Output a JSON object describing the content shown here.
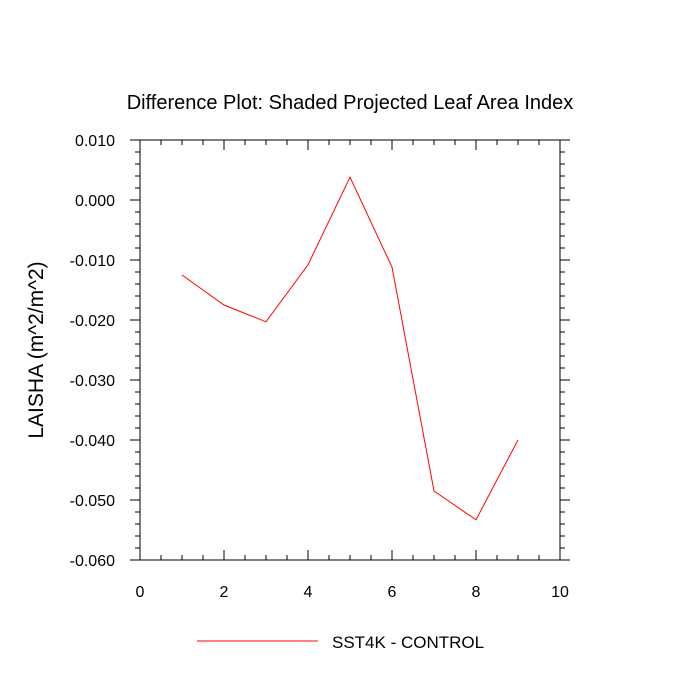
{
  "chart_data": {
    "type": "line",
    "title": "Difference Plot: Shaded Projected Leaf Area Index",
    "xlabel": "",
    "ylabel": "LAISHA  (m^2/m^2)",
    "xlim": [
      0,
      10
    ],
    "ylim": [
      -0.06,
      0.01
    ],
    "grid": false,
    "legend_position": "bottom-center",
    "x_ticks": [
      0,
      2,
      4,
      6,
      8,
      10
    ],
    "x_tick_labels": [
      "0",
      "2",
      "4",
      "6",
      "8",
      "10"
    ],
    "y_ticks": [
      0.01,
      0.0,
      -0.01,
      -0.02,
      -0.03,
      -0.04,
      -0.05,
      -0.06
    ],
    "y_tick_labels": [
      "0.010",
      "0.000",
      "-0.010",
      "-0.020",
      "-0.030",
      "-0.040",
      "-0.050",
      "-0.060"
    ],
    "series": [
      {
        "name": "SST4K - CONTROL",
        "color": "#ff0000",
        "x": [
          1,
          2,
          3,
          4,
          5,
          6,
          7,
          8,
          9
        ],
        "values": [
          -0.0125,
          -0.0175,
          -0.0203,
          -0.0108,
          0.0038,
          -0.0112,
          -0.0485,
          -0.0533,
          -0.04
        ]
      }
    ]
  }
}
